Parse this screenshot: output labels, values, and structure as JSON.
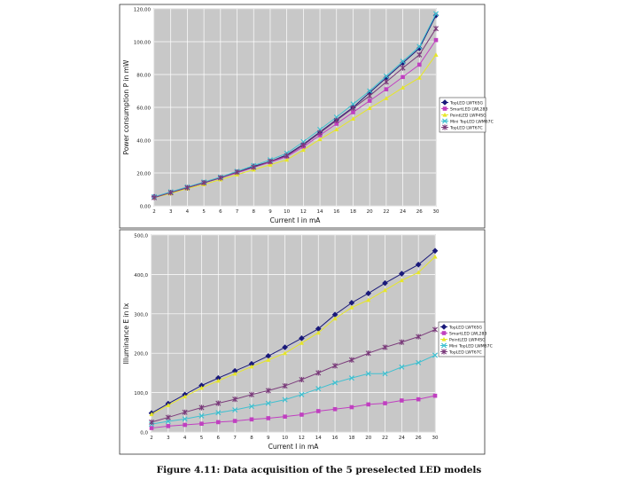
{
  "caption": "Figure 4.11: Data acquisition of the 5 preselected LED models",
  "colors": {
    "panel_bg": "#c8c8c8",
    "grid": "#ffffff",
    "frame": "#555555"
  },
  "chart_data": [
    {
      "type": "line",
      "title": "",
      "xlabel": "Current I in mA",
      "ylabel": "Power consumption P in mW",
      "categories": [
        "2",
        "3",
        "4",
        "5",
        "6",
        "7",
        "8",
        "9",
        "10",
        "12",
        "14",
        "16",
        "18",
        "20",
        "22",
        "24",
        "26",
        "30"
      ],
      "ylim": [
        0,
        120
      ],
      "yticks": [
        "0,00",
        "20,00",
        "40,00",
        "60,00",
        "80,00",
        "100,00",
        "120,00"
      ],
      "grid": true,
      "legend": "right",
      "series": [
        {
          "name": "TopLED LWT65G",
          "color": "#1a1a7a",
          "marker": "diamond",
          "values": [
            5.5,
            8,
            11,
            14,
            17,
            20.5,
            24,
            27,
            31,
            37.5,
            45,
            52.5,
            60,
            69,
            78,
            87,
            96,
            116
          ]
        },
        {
          "name": "SmartLED LWL283",
          "color": "#c040c0",
          "marker": "square",
          "values": [
            5.5,
            8,
            11,
            14,
            17,
            20,
            23.5,
            26.5,
            30,
            36,
            43,
            50,
            57,
            64,
            71,
            78.5,
            86,
            101
          ]
        },
        {
          "name": "PointLED LWP4SG",
          "color": "#e6e62a",
          "marker": "triangle",
          "values": [
            5,
            7.5,
            10.5,
            13,
            16,
            19,
            22,
            25,
            28,
            34,
            40.5,
            46.5,
            53,
            59.5,
            65.5,
            72,
            78,
            92
          ]
        },
        {
          "name": "Mini TopLED LWM67C",
          "color": "#40c0d0",
          "marker": "x",
          "values": [
            5.5,
            8.5,
            11.5,
            14.5,
            17.5,
            21,
            24.5,
            28,
            32,
            39,
            46.5,
            54,
            62,
            70,
            79,
            88,
            97,
            117
          ]
        },
        {
          "name": "TopLED LWT67C",
          "color": "#7a3a7a",
          "marker": "star",
          "values": [
            5,
            8,
            11,
            14,
            17,
            20.5,
            23.5,
            27,
            30.5,
            37,
            44.5,
            52,
            59.5,
            67,
            75.5,
            84,
            92,
            108
          ]
        }
      ]
    },
    {
      "type": "line",
      "title": "",
      "xlabel": "Current I in mA",
      "ylabel": "Illuminance E in lx",
      "categories": [
        "2",
        "3",
        "4",
        "5",
        "6",
        "7",
        "8",
        "9",
        "10",
        "12",
        "14",
        "16",
        "18",
        "20",
        "22",
        "24",
        "26",
        "30"
      ],
      "ylim": [
        0,
        500
      ],
      "yticks": [
        "0,0",
        "100,0",
        "200,0",
        "300,0",
        "400,0",
        "500,0"
      ],
      "grid": true,
      "legend": "right",
      "series": [
        {
          "name": "TopLED LWT65G",
          "color": "#1a1a7a",
          "marker": "diamond",
          "values": [
            48,
            72,
            95,
            118,
            137,
            155,
            173,
            193,
            215,
            238,
            262,
            298,
            328,
            352,
            378,
            402,
            425,
            460
          ]
        },
        {
          "name": "SmartLED LWL283",
          "color": "#c040c0",
          "marker": "square",
          "values": [
            10,
            15,
            18,
            21,
            25,
            28,
            32,
            35,
            39,
            44,
            53,
            58,
            63,
            70,
            73,
            80,
            83,
            92
          ]
        },
        {
          "name": "PointLED LWP4SG",
          "color": "#e6e62a",
          "marker": "triangle",
          "values": [
            45,
            68,
            90,
            112,
            130,
            148,
            166,
            183,
            200,
            226,
            252,
            288,
            316,
            335,
            360,
            385,
            405,
            445
          ]
        },
        {
          "name": "Mini TopLED LWM67C",
          "color": "#40c0d0",
          "marker": "x",
          "values": [
            20,
            27,
            33,
            41,
            49,
            56,
            65,
            73,
            82,
            95,
            110,
            125,
            137,
            148,
            148,
            165,
            176,
            195
          ]
        },
        {
          "name": "TopLED LWT67C",
          "color": "#7a3a7a",
          "marker": "star",
          "values": [
            25,
            37,
            50,
            62,
            73,
            83,
            95,
            105,
            117,
            133,
            150,
            168,
            183,
            200,
            215,
            228,
            242,
            260
          ]
        }
      ]
    }
  ]
}
